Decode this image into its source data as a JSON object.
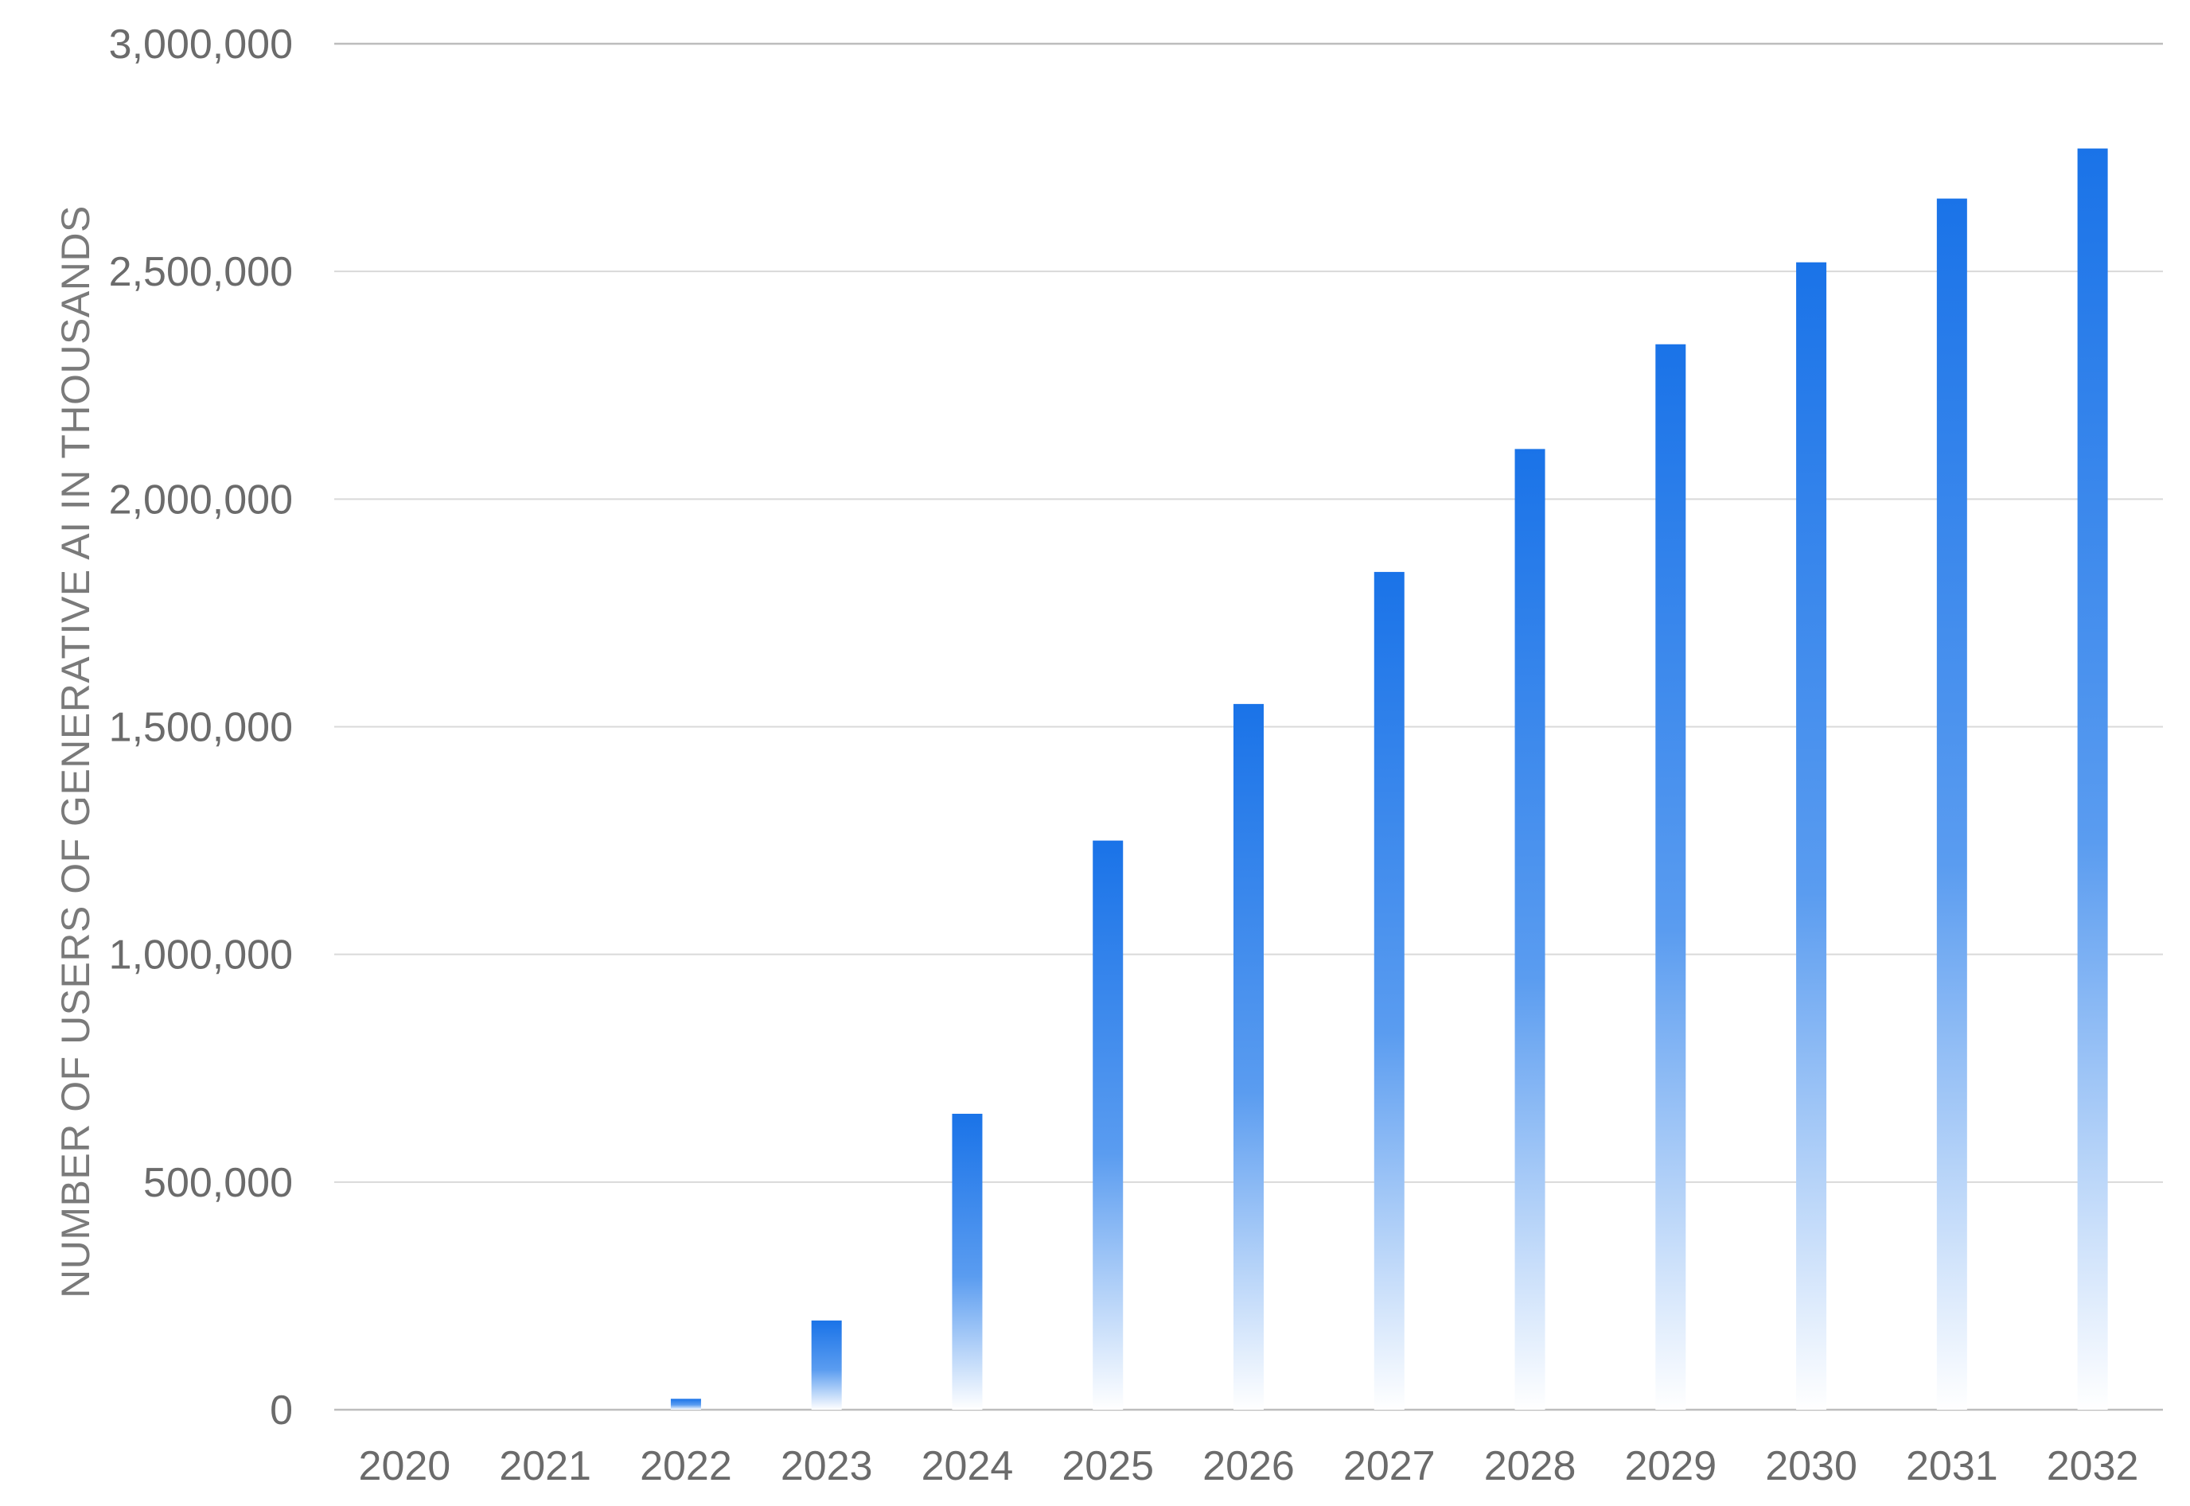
{
  "chart_data": {
    "type": "bar",
    "title": "",
    "xlabel": "",
    "ylabel": "NUMBER OF USERS OF GENERATIVE AI IN THOUSANDS",
    "categories": [
      "2020",
      "2021",
      "2022",
      "2023",
      "2024",
      "2025",
      "2026",
      "2027",
      "2028",
      "2029",
      "2030",
      "2031",
      "2032"
    ],
    "series": [
      {
        "values": [
          0,
          0,
          24000,
          196000,
          650000,
          1250000,
          1550000,
          1840000,
          2110000,
          2340000,
          2520000,
          2660000,
          2770000
        ]
      }
    ],
    "ylim": [
      0,
      3000000
    ],
    "yticks": [
      0,
      500000,
      1000000,
      1500000,
      2000000,
      2500000,
      3000000
    ],
    "ytick_labels": [
      "0",
      "500,000",
      "1,000,000",
      "1,500,000",
      "2,000,000",
      "2,500,000",
      "3,000,000"
    ],
    "grid": true,
    "legend": "none",
    "colors": {
      "bar_top": "#1a73e8",
      "bar_bottom": "#ffffff",
      "grid": "#d9d9d9",
      "axis": "#bdbdbd",
      "text": "#6b6b6b"
    }
  }
}
